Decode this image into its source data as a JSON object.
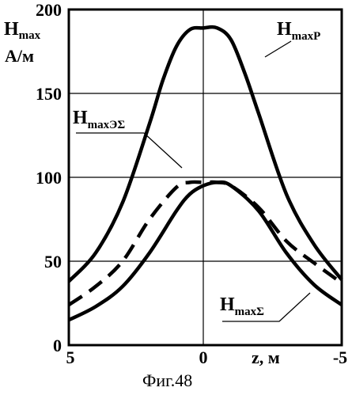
{
  "chart_data": {
    "type": "line",
    "caption": "Фиг.48",
    "ylabel_main": "H",
    "ylabel_sub": "max",
    "ylabel_unit": "А/м",
    "xlabel": "z, м",
    "xlim": [
      5,
      -5
    ],
    "ylim": [
      0,
      200
    ],
    "x_ticks": [
      5,
      0,
      -5
    ],
    "y_ticks": [
      0,
      50,
      100,
      150,
      200
    ],
    "grid": true,
    "series": [
      {
        "name_main": "H",
        "name_sub": "maxP",
        "style": "solid",
        "x": [
          5,
          4,
          3,
          2,
          1.5,
          1,
          0.5,
          0,
          -0.5,
          -1,
          -1.5,
          -2,
          -3,
          -4,
          -5
        ],
        "values": [
          38,
          55,
          85,
          132,
          158,
          178,
          188,
          189,
          189,
          182,
          162,
          138,
          90,
          60,
          39
        ]
      },
      {
        "name_main": "H",
        "name_sub": "maxЭΣ",
        "style": "dashed",
        "x": [
          5,
          4,
          3,
          2,
          1,
          0.5,
          0,
          -0.5,
          -1,
          -2,
          -3,
          -4,
          -5
        ],
        "values": [
          24,
          35,
          50,
          75,
          94,
          97,
          97,
          97,
          95,
          82,
          62,
          49,
          37
        ]
      },
      {
        "name_main": "H",
        "name_sub": "maxΣ",
        "style": "solid",
        "x": [
          5,
          4,
          3,
          2,
          1,
          0.5,
          0,
          -0.5,
          -1,
          -2,
          -3,
          -4,
          -5
        ],
        "values": [
          15,
          23,
          35,
          55,
          80,
          90,
          95,
          97,
          95,
          80,
          55,
          36,
          24
        ]
      }
    ]
  }
}
